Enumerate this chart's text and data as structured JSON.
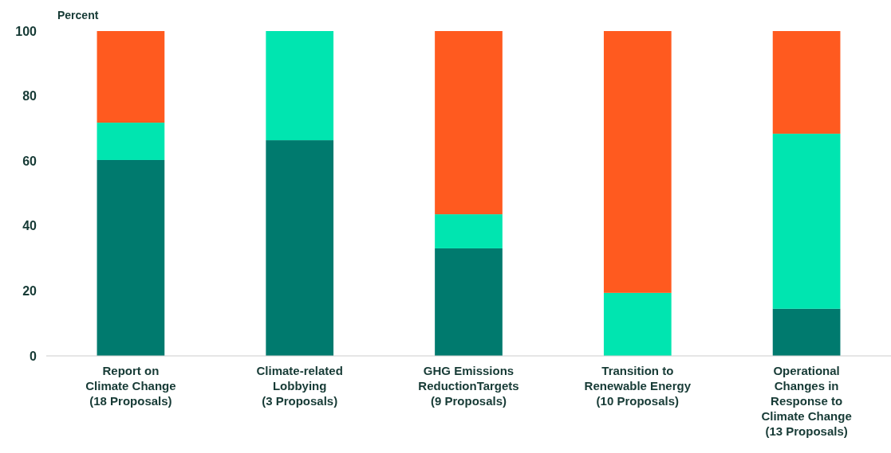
{
  "chart_data": {
    "type": "bar",
    "stacked": true,
    "ylabel": "Percent",
    "categories": [
      "Report on\nClimate Change\n(18 Proposals)",
      "Climate-related\nLobbying\n(3 Proposals)",
      "GHG Emissions\nReductionTargets\n(9 Proposals)",
      "Transition to\nRenewable Energy\n(10 Proposals)",
      "Operational\nChanges in\nResponse to\nClimate Change\n(13 Proposals)"
    ],
    "series": [
      {
        "color": "#007a6e",
        "values": [
          60.3,
          66.4,
          33.1,
          0,
          14.5
        ]
      },
      {
        "color": "#00e5b0",
        "values": [
          11.5,
          33.6,
          10.5,
          19.4,
          53.9
        ]
      },
      {
        "color": "#ff5a1f",
        "values": [
          28.2,
          0,
          56.4,
          80.6,
          31.6
        ]
      }
    ],
    "ylim": [
      0,
      100
    ],
    "yticks": [
      0,
      20,
      40,
      60,
      80,
      100
    ],
    "grid": false
  }
}
